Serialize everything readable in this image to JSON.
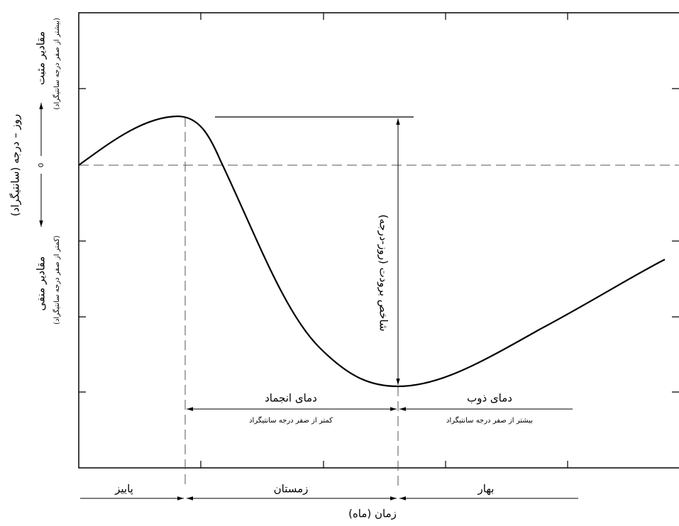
{
  "y_axis": {
    "title": "روز – درجه (سانتیگراد)",
    "zero": "0",
    "positive": {
      "label": "مقادیر مثبت",
      "note": "(بیشتر از صفر درجه سانتیگراد)"
    },
    "negative": {
      "label": "مقادیر منفی",
      "note": "(کمتر از صفر درجه سانتیگراد)"
    }
  },
  "index_label": "شاخص برودت (روز-درجه)",
  "freezing": {
    "label": "دمای انجماد",
    "note": "کمتر از صفر درجه سانتیگراد"
  },
  "thawing": {
    "label": "دمای ذوب",
    "note": "بیشتر از صفر درجه سانتیگراد"
  },
  "seasons": [
    "پاییز",
    "زمستان",
    "بهار"
  ],
  "x_axis": {
    "title": "زمان (ماه)"
  }
}
